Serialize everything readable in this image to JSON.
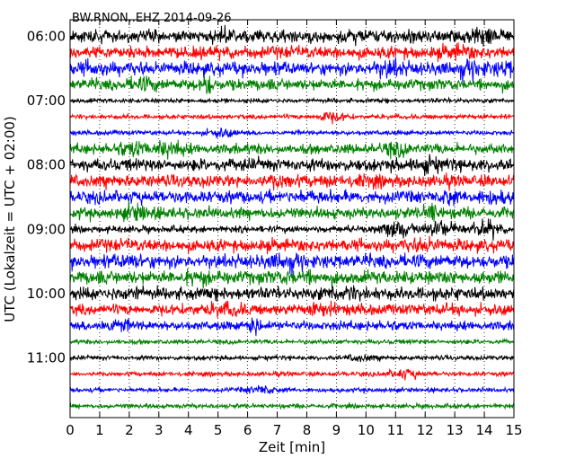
{
  "chart_data": {
    "type": "line",
    "title": "BW.RNON..EHZ 2014-09-26",
    "xlabel": "Zeit  [min]",
    "ylabel": "UTC (Lokalzeit = UTC + 02:00)",
    "xlim": [
      0,
      15
    ],
    "x_ticks": [
      "0",
      "1",
      "2",
      "3",
      "4",
      "5",
      "6",
      "7",
      "8",
      "9",
      "10",
      "11",
      "12",
      "13",
      "14",
      "15"
    ],
    "y_ticks": [
      "06:00",
      "07:00",
      "08:00",
      "09:00",
      "10:00",
      "11:00"
    ],
    "grid": "vertical dotted",
    "trace_colors": [
      "#000000",
      "#ff0000",
      "#0000ff",
      "#008000"
    ],
    "series": [
      {
        "start": "06:00",
        "amplitude": 0.55,
        "events": [
          {
            "t": 5.3,
            "amp": 0.75
          },
          {
            "t": 9.7,
            "amp": 0.75
          },
          {
            "t": 14.1,
            "amp": 0.9
          }
        ]
      },
      {
        "start": "06:15",
        "amplitude": 0.55,
        "events": [
          {
            "t": 13.1,
            "amp": 0.8
          }
        ]
      },
      {
        "start": "06:30",
        "amplitude": 0.6,
        "events": [
          {
            "t": 0.8,
            "amp": 0.75
          },
          {
            "t": 10.8,
            "amp": 0.95
          },
          {
            "t": 13.5,
            "amp": 0.95
          },
          {
            "t": 14.8,
            "amp": 0.85
          }
        ]
      },
      {
        "start": "06:45",
        "amplitude": 0.5,
        "events": [
          {
            "t": 2.5,
            "amp": 0.75
          },
          {
            "t": 4.6,
            "amp": 1.4
          }
        ]
      },
      {
        "start": "07:00",
        "amplitude": 0.2,
        "events": []
      },
      {
        "start": "07:15",
        "amplitude": 0.2,
        "events": [
          {
            "t": 8.8,
            "amp": 0.6
          }
        ]
      },
      {
        "start": "07:30",
        "amplitude": 0.2,
        "events": [
          {
            "t": 5.1,
            "amp": 0.5
          }
        ]
      },
      {
        "start": "07:45",
        "amplitude": 0.45,
        "events": [
          {
            "t": 2.0,
            "amp": 0.95
          },
          {
            "t": 3.3,
            "amp": 0.9
          },
          {
            "t": 11.0,
            "amp": 0.8
          }
        ]
      },
      {
        "start": "08:00",
        "amplitude": 0.55,
        "events": [
          {
            "t": 12.0,
            "amp": 0.9
          }
        ]
      },
      {
        "start": "08:15",
        "amplitude": 0.55,
        "events": [
          {
            "t": 7.0,
            "amp": 0.8
          },
          {
            "t": 10.0,
            "amp": 0.7
          }
        ]
      },
      {
        "start": "08:30",
        "amplitude": 0.55,
        "events": [
          {
            "t": 8.0,
            "amp": 0.75
          },
          {
            "t": 12.8,
            "amp": 1.3
          },
          {
            "t": 14.3,
            "amp": 0.85
          }
        ]
      },
      {
        "start": "08:45",
        "amplitude": 0.5,
        "events": [
          {
            "t": 2.3,
            "amp": 0.9
          },
          {
            "t": 12.2,
            "amp": 1.4
          }
        ]
      },
      {
        "start": "09:00",
        "amplitude": 0.3,
        "events": [
          {
            "t": 11.0,
            "amp": 0.95
          },
          {
            "t": 12.5,
            "amp": 0.95
          },
          {
            "t": 14.0,
            "amp": 0.95
          }
        ]
      },
      {
        "start": "09:15",
        "amplitude": 0.55,
        "events": [
          {
            "t": 12.0,
            "amp": 0.8
          }
        ]
      },
      {
        "start": "09:30",
        "amplitude": 0.6,
        "events": [
          {
            "t": 2.1,
            "amp": 0.8
          },
          {
            "t": 7.3,
            "amp": 0.95
          }
        ]
      },
      {
        "start": "09:45",
        "amplitude": 0.6,
        "events": [
          {
            "t": 4.4,
            "amp": 0.8
          },
          {
            "t": 7.7,
            "amp": 0.8
          }
        ]
      },
      {
        "start": "10:00",
        "amplitude": 0.55,
        "events": [
          {
            "t": 2.1,
            "amp": 0.8
          },
          {
            "t": 9.2,
            "amp": 0.85
          }
        ]
      },
      {
        "start": "10:15",
        "amplitude": 0.5,
        "events": [
          {
            "t": 5.3,
            "amp": 0.8
          },
          {
            "t": 8.5,
            "amp": 0.7
          }
        ]
      },
      {
        "start": "10:30",
        "amplitude": 0.4,
        "events": [
          {
            "t": 1.5,
            "amp": 0.8
          },
          {
            "t": 6.2,
            "amp": 1.3
          },
          {
            "t": 10.9,
            "amp": 0.55
          }
        ]
      },
      {
        "start": "10:45",
        "amplitude": 0.2,
        "events": []
      },
      {
        "start": "11:00",
        "amplitude": 0.2,
        "events": [
          {
            "t": 9.8,
            "amp": 0.4
          }
        ]
      },
      {
        "start": "11:15",
        "amplitude": 0.2,
        "events": [
          {
            "t": 11.3,
            "amp": 0.55
          }
        ]
      },
      {
        "start": "11:30",
        "amplitude": 0.2,
        "events": [
          {
            "t": 6.5,
            "amp": 0.5
          }
        ]
      },
      {
        "start": "11:45",
        "amplitude": 0.2,
        "events": []
      }
    ]
  }
}
